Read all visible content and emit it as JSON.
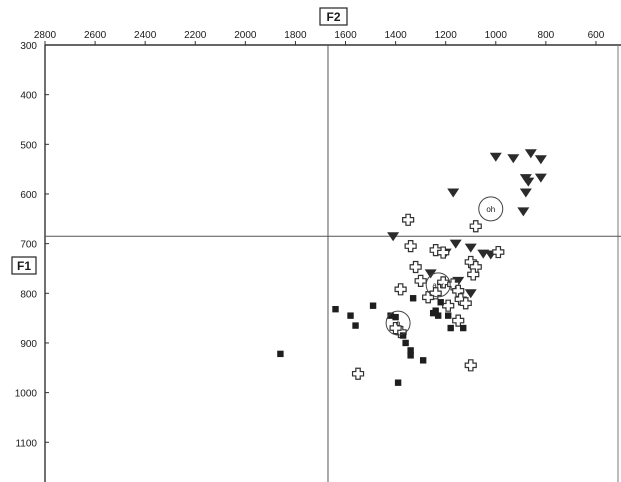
{
  "chart_data": {
    "type": "scatter",
    "xlabel": "F2",
    "ylabel": "F1",
    "x_reversed": true,
    "y_reversed": true,
    "xlim": [
      2800,
      500
    ],
    "ylim": [
      300,
      1180
    ],
    "x_ticks": [
      2800,
      2600,
      2400,
      2200,
      2000,
      1800,
      1600,
      1400,
      1200,
      1000,
      800,
      600
    ],
    "y_ticks": [
      300,
      400,
      500,
      600,
      700,
      800,
      900,
      1000,
      1100
    ],
    "crosshair": {
      "x": 1670,
      "y": 685
    },
    "series": [
      {
        "marker": "triangle-down",
        "points": [
          [
            1000,
            525
          ],
          [
            930,
            528
          ],
          [
            860,
            518
          ],
          [
            820,
            530
          ],
          [
            880,
            568
          ],
          [
            870,
            575
          ],
          [
            1170,
            597
          ],
          [
            880,
            597
          ],
          [
            820,
            567
          ],
          [
            890,
            635
          ],
          [
            1410,
            685
          ],
          [
            1200,
            718
          ],
          [
            1160,
            700
          ],
          [
            1100,
            708
          ],
          [
            1050,
            720
          ],
          [
            1020,
            722
          ],
          [
            1260,
            760
          ],
          [
            1100,
            800
          ],
          [
            1150,
            775
          ]
        ]
      },
      {
        "marker": "plus",
        "points": [
          [
            1350,
            652
          ],
          [
            1080,
            665
          ],
          [
            1340,
            705
          ],
          [
            1240,
            713
          ],
          [
            1210,
            718
          ],
          [
            990,
            717
          ],
          [
            1320,
            747
          ],
          [
            1100,
            737
          ],
          [
            1080,
            747
          ],
          [
            1090,
            762
          ],
          [
            1300,
            775
          ],
          [
            1210,
            778
          ],
          [
            1170,
            782
          ],
          [
            1380,
            792
          ],
          [
            1150,
            795
          ],
          [
            1270,
            808
          ],
          [
            1240,
            800
          ],
          [
            1140,
            812
          ],
          [
            1120,
            820
          ],
          [
            1150,
            855
          ],
          [
            1380,
            878
          ],
          [
            1550,
            962
          ],
          [
            1100,
            945
          ],
          [
            1190,
            825
          ],
          [
            1400,
            870
          ]
        ]
      },
      {
        "marker": "square",
        "points": [
          [
            1640,
            832
          ],
          [
            1580,
            845
          ],
          [
            1490,
            825
          ],
          [
            1560,
            865
          ],
          [
            1420,
            845
          ],
          [
            1400,
            848
          ],
          [
            1220,
            818
          ],
          [
            1240,
            835
          ],
          [
            1230,
            845
          ],
          [
            1130,
            870
          ],
          [
            1180,
            870
          ],
          [
            1190,
            845
          ],
          [
            1250,
            840
          ],
          [
            1370,
            885
          ],
          [
            1360,
            900
          ],
          [
            1340,
            915
          ],
          [
            1340,
            925
          ],
          [
            1290,
            935
          ],
          [
            1860,
            922
          ],
          [
            1390,
            980
          ],
          [
            1330,
            810
          ]
        ]
      }
    ],
    "annotations": [
      {
        "text": "oh",
        "x": 1020,
        "y": 630
      },
      {
        "text": "ahr",
        "x": 1230,
        "y": 783
      },
      {
        "text": "o",
        "x": 1390,
        "y": 860
      }
    ]
  }
}
